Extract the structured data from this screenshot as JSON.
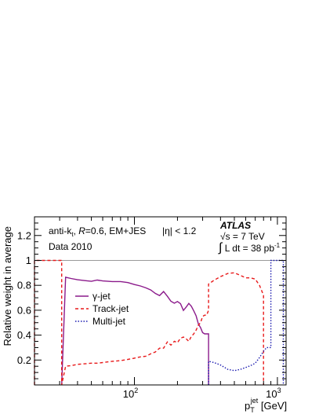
{
  "chart_data": {
    "type": "line",
    "ylabel": "Relative weight in average",
    "xlabel_main": "p",
    "xlabel_sup": "jet",
    "xlabel_sub": "T",
    "xlabel_unit": "[GeV]",
    "x_scale": "log",
    "xlim": [
      20,
      1150
    ],
    "ylim": [
      0,
      1.35
    ],
    "y_ticks": [
      "0.2",
      "0.4",
      "0.6",
      "0.8",
      "1",
      "1.2"
    ],
    "y_tick_values": [
      0.2,
      0.4,
      0.6,
      0.8,
      1.0,
      1.2
    ],
    "x_ticks": [
      {
        "value": 100,
        "base": "10",
        "exp": "2"
      },
      {
        "value": 1000,
        "base": "10",
        "exp": "3"
      }
    ],
    "reference_line": 1.0,
    "grid": false,
    "annotations": {
      "algo_prefix": "anti-k",
      "algo_sub": "t",
      "algo_r": "R",
      "algo_rest": "=0.6, EM+JES",
      "eta": "|η| < 1.2",
      "data": "Data 2010",
      "experiment": "ATLAS",
      "energy_root": "√",
      "energy_s": "s",
      "energy_rest": " = 7 TeV",
      "lumi_int": "∫",
      "lumi_text": "L dt = 38 pb",
      "lumi_exp": "-1"
    },
    "legend_position": "middle-left",
    "series": [
      {
        "name": "γ-jet",
        "color": "#8b1a8b",
        "dash": "solid",
        "x": [
          31,
          33,
          36,
          40,
          45,
          50,
          55,
          60,
          70,
          80,
          90,
          100,
          110,
          120,
          130,
          140,
          150,
          160,
          170,
          180,
          190,
          200,
          210,
          220,
          230,
          240,
          250,
          260,
          270,
          280,
          290,
          300,
          310,
          320,
          330,
          330
        ],
        "y": [
          0.0,
          0.865,
          0.855,
          0.845,
          0.838,
          0.832,
          0.842,
          0.835,
          0.83,
          0.83,
          0.822,
          0.806,
          0.795,
          0.78,
          0.763,
          0.735,
          0.717,
          0.75,
          0.712,
          0.672,
          0.656,
          0.67,
          0.652,
          0.598,
          0.625,
          0.655,
          0.632,
          0.595,
          0.555,
          0.49,
          0.46,
          0.42,
          0.41,
          0.41,
          0.41,
          0.0
        ]
      },
      {
        "name": "Track-jet",
        "color": "#e8191a",
        "dash": "dashed",
        "x": [
          20,
          20,
          31,
          31,
          33,
          36,
          40,
          45,
          50,
          55,
          60,
          70,
          80,
          90,
          100,
          110,
          120,
          130,
          140,
          150,
          160,
          170,
          180,
          190,
          200,
          210,
          220,
          230,
          240,
          250,
          260,
          270,
          280,
          290,
          300,
          310,
          320,
          330,
          330,
          360,
          400,
          450,
          500,
          550,
          600,
          650,
          700,
          750,
          800,
          800
        ],
        "y": [
          0.0,
          1.0,
          1.0,
          0.0,
          0.15,
          0.155,
          0.165,
          0.17,
          0.175,
          0.175,
          0.18,
          0.19,
          0.195,
          0.205,
          0.215,
          0.225,
          0.23,
          0.25,
          0.265,
          0.295,
          0.295,
          0.345,
          0.32,
          0.35,
          0.34,
          0.375,
          0.385,
          0.37,
          0.35,
          0.39,
          0.41,
          0.44,
          0.48,
          0.5,
          0.55,
          0.56,
          0.56,
          0.6,
          0.81,
          0.84,
          0.87,
          0.895,
          0.9,
          0.88,
          0.86,
          0.86,
          0.85,
          0.8,
          0.72,
          0.0
        ]
      },
      {
        "name": "Multi-jet",
        "color": "#1a1ab0",
        "dash": "dotted",
        "x": [
          330,
          330,
          360,
          400,
          450,
          500,
          550,
          600,
          650,
          700,
          750,
          800,
          840,
          880,
          900,
          900,
          1100,
          1100
        ],
        "y": [
          0.0,
          0.19,
          0.18,
          0.16,
          0.125,
          0.115,
          0.125,
          0.14,
          0.155,
          0.175,
          0.22,
          0.27,
          0.3,
          0.3,
          0.3,
          1.0,
          1.0,
          0.0
        ]
      }
    ]
  }
}
